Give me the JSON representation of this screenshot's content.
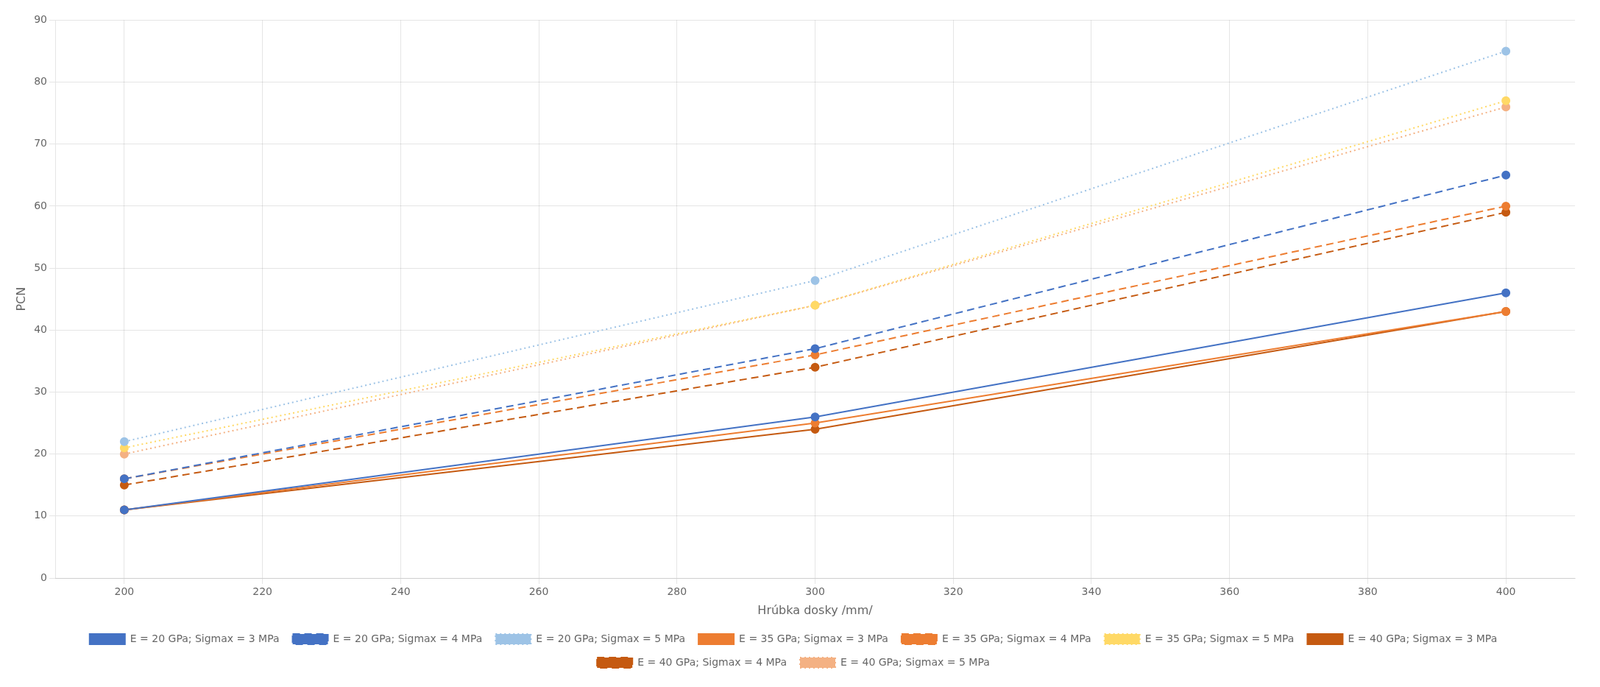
{
  "chart_data": {
    "type": "line",
    "xlabel": "Hrúbka dosky /mm/",
    "ylabel": "PCN",
    "x": [
      200,
      300,
      400
    ],
    "series": [
      {
        "name": "E = 20 GPa; Sigmax = 3 MPa",
        "color": "#4472C4",
        "line_style": "solid",
        "marker": "circle",
        "values": [
          11,
          26,
          46
        ]
      },
      {
        "name": "E = 20 GPa; Sigmax = 4 MPa",
        "color": "#4472C4",
        "line_style": "dashed",
        "marker": "circle",
        "values": [
          16,
          37,
          65
        ]
      },
      {
        "name": "E = 20 GPa; Sigmax = 5 MPa",
        "color": "#9DC3E6",
        "line_style": "dotted",
        "marker": "circle",
        "values": [
          22,
          48,
          85
        ]
      },
      {
        "name": "E = 35 GPa; Sigmax = 3 MPa",
        "color": "#ED7D31",
        "line_style": "solid",
        "marker": "circle",
        "values": [
          11,
          25,
          43
        ]
      },
      {
        "name": "E = 35 GPa; Sigmax = 4 MPa",
        "color": "#ED7D31",
        "line_style": "dashed",
        "marker": "circle",
        "values": [
          16,
          36,
          60
        ]
      },
      {
        "name": "E = 35 GPa; Sigmax = 5 MPa",
        "color": "#FFD966",
        "line_style": "dotted",
        "marker": "circle",
        "values": [
          21,
          44,
          77
        ]
      },
      {
        "name": "E = 40 GPa; Sigmax = 3 MPa",
        "color": "#C55A11",
        "line_style": "solid",
        "marker": "circle",
        "values": [
          11,
          24,
          43
        ]
      },
      {
        "name": "E = 40 GPa; Sigmax = 4 MPa",
        "color": "#C55A11",
        "line_style": "dashed",
        "marker": "circle",
        "values": [
          15,
          34,
          59
        ]
      },
      {
        "name": "E = 40 GPa; Sigmax = 5 MPa",
        "color": "#F4B183",
        "line_style": "dotted",
        "marker": "circle",
        "values": [
          20,
          44,
          76
        ]
      }
    ],
    "xlim": [
      190,
      410
    ],
    "ylim": [
      0,
      90
    ],
    "xticks": [
      200,
      220,
      240,
      260,
      280,
      300,
      320,
      340,
      360,
      380,
      400
    ],
    "yticks": [
      0,
      10,
      20,
      30,
      40,
      50,
      60,
      70,
      80,
      90
    ],
    "grid": true,
    "legend": "bottom"
  }
}
